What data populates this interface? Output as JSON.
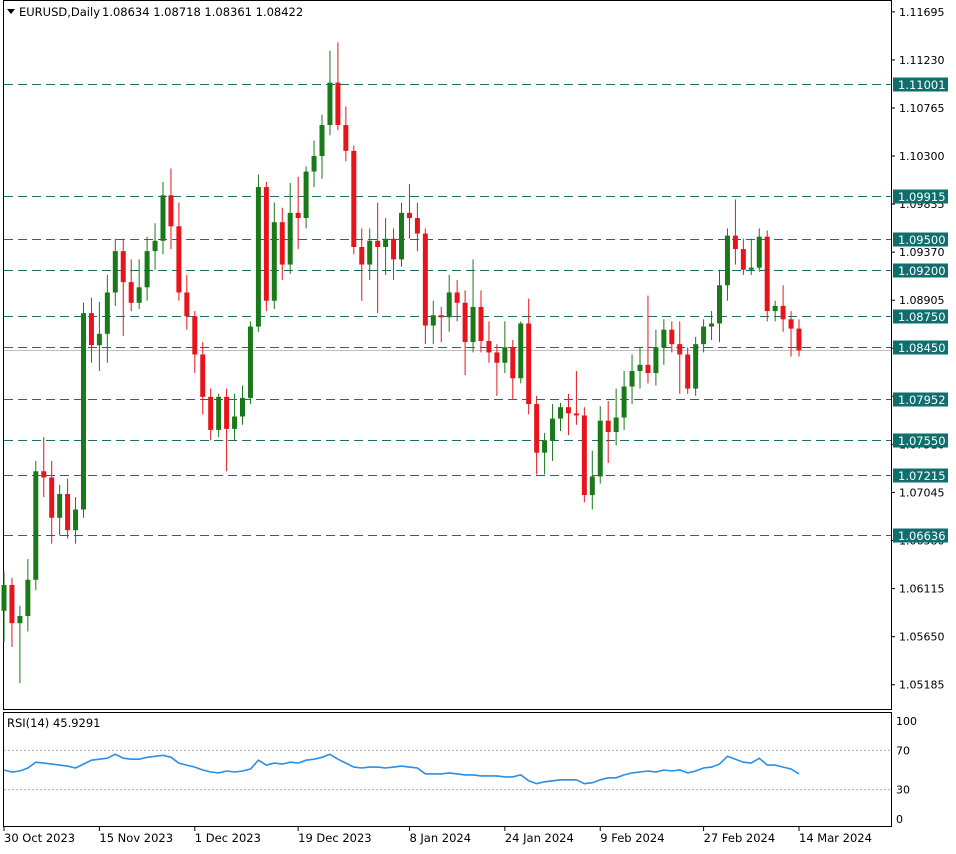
{
  "chart_data": {
    "type": "candlestick",
    "symbol": "EURUSD,Daily",
    "ohlc_text": "1.08634 1.08718 1.08361 1.08422",
    "price_ylim": [
      1.0495,
      1.118
    ],
    "price_ticks": [
      "1.11695",
      "1.11230",
      "1.10765",
      "1.10300",
      "1.09835",
      "1.09370",
      "1.08905",
      "1.08440",
      "1.07975",
      "1.07510",
      "1.07045",
      "1.06580",
      "1.06115",
      "1.05650",
      "1.05185"
    ],
    "levels": [
      {
        "value": 1.11001,
        "label": "1.11001"
      },
      {
        "value": 1.09915,
        "label": "1.09915"
      },
      {
        "value": 1.095,
        "label": "1.09500"
      },
      {
        "value": 1.092,
        "label": "1.09200"
      },
      {
        "value": 1.0875,
        "label": "1.08750"
      },
      {
        "value": 1.0845,
        "label": "1.08450"
      },
      {
        "value": 1.07952,
        "label": "1.07952"
      },
      {
        "value": 1.0755,
        "label": "1.07550"
      },
      {
        "value": 1.07215,
        "label": "1.07215"
      },
      {
        "value": 1.06636,
        "label": "1.06636"
      }
    ],
    "current_price": 1.08422,
    "x_labels": [
      "30 Oct 2023",
      "15 Nov 2023",
      "1 Dec 2023",
      "19 Dec 2023",
      "8 Jan 2024",
      "24 Jan 2024",
      "9 Feb 2024",
      "27 Feb 2024",
      "14 Mar 2024"
    ],
    "x_label_bar_index": [
      0,
      12,
      24,
      37,
      51,
      63,
      75,
      88,
      100
    ],
    "candles": [
      [
        1.059,
        1.0628,
        1.056,
        1.0615
      ],
      [
        1.0615,
        1.0622,
        1.0555,
        1.0578
      ],
      [
        1.0578,
        1.0595,
        1.052,
        1.0585
      ],
      [
        1.0585,
        1.064,
        1.057,
        1.062
      ],
      [
        1.062,
        1.0735,
        1.061,
        1.0725
      ],
      [
        1.0725,
        1.0758,
        1.07,
        1.0719
      ],
      [
        1.0719,
        1.0735,
        1.0655,
        1.068
      ],
      [
        1.068,
        1.0712,
        1.0663,
        1.0703
      ],
      [
        1.0703,
        1.0718,
        1.066,
        1.0668
      ],
      [
        1.0668,
        1.07,
        1.0655,
        1.0688
      ],
      [
        1.0688,
        1.0888,
        1.068,
        1.0878
      ],
      [
        1.0878,
        1.0893,
        1.083,
        1.0847
      ],
      [
        1.0847,
        1.0889,
        1.0822,
        1.0858
      ],
      [
        1.0858,
        1.0915,
        1.083,
        1.0898
      ],
      [
        1.0898,
        1.095,
        1.0885,
        1.0938
      ],
      [
        1.0938,
        1.095,
        1.0856,
        1.0908
      ],
      [
        1.0908,
        1.093,
        1.088,
        1.0888
      ],
      [
        1.0888,
        1.093,
        1.0882,
        1.0903
      ],
      [
        1.0903,
        1.0952,
        1.089,
        1.0938
      ],
      [
        1.0938,
        1.0965,
        1.092,
        1.0948
      ],
      [
        1.0948,
        1.1005,
        1.0935,
        1.0992
      ],
      [
        1.0992,
        1.1018,
        1.094,
        1.0962
      ],
      [
        1.0962,
        1.0985,
        1.089,
        1.0898
      ],
      [
        1.0898,
        1.0915,
        1.0862,
        1.0875
      ],
      [
        1.0875,
        1.088,
        1.082,
        1.0838
      ],
      [
        1.0838,
        1.085,
        1.078,
        1.0797
      ],
      [
        1.0797,
        1.0805,
        1.0755,
        1.0765
      ],
      [
        1.0765,
        1.08,
        1.0758,
        1.0797
      ],
      [
        1.0797,
        1.0805,
        1.0725,
        1.0766
      ],
      [
        1.0766,
        1.08,
        1.0755,
        1.0778
      ],
      [
        1.0778,
        1.0808,
        1.077,
        1.0796
      ],
      [
        1.0796,
        1.087,
        1.079,
        1.0865
      ],
      [
        1.0865,
        1.1012,
        1.086,
        1.1
      ],
      [
        1.1,
        1.1005,
        1.088,
        1.089
      ],
      [
        1.089,
        1.0985,
        1.0882,
        1.0966
      ],
      [
        1.0966,
        1.098,
        1.091,
        1.0925
      ],
      [
        1.0925,
        1.1004,
        1.0916,
        1.0975
      ],
      [
        1.0975,
        1.101,
        1.094,
        1.097
      ],
      [
        1.097,
        1.102,
        1.096,
        1.1015
      ],
      [
        1.1015,
        1.1045,
        1.1,
        1.103
      ],
      [
        1.103,
        1.107,
        1.1008,
        1.106
      ],
      [
        1.106,
        1.1132,
        1.105,
        1.1101
      ],
      [
        1.1101,
        1.114,
        1.1055,
        1.106
      ],
      [
        1.106,
        1.1078,
        1.1025,
        1.1035
      ],
      [
        1.1035,
        1.104,
        1.0935,
        1.0942
      ],
      [
        1.0942,
        1.096,
        1.089,
        1.0925
      ],
      [
        1.0925,
        1.096,
        1.091,
        1.0948
      ],
      [
        1.0948,
        1.0985,
        1.0878,
        1.0942
      ],
      [
        1.0942,
        1.097,
        1.0915,
        1.095
      ],
      [
        1.095,
        1.096,
        1.091,
        1.093
      ],
      [
        1.093,
        1.0985,
        1.0923,
        1.0975
      ],
      [
        1.0975,
        1.1003,
        1.095,
        1.097
      ],
      [
        1.097,
        1.0985,
        1.0938,
        1.0955
      ],
      [
        1.0955,
        1.096,
        1.0848,
        1.0866
      ],
      [
        1.0866,
        1.089,
        1.0848,
        1.0876
      ],
      [
        1.0876,
        1.0884,
        1.085,
        1.0874
      ],
      [
        1.0874,
        1.0915,
        1.086,
        1.0898
      ],
      [
        1.0898,
        1.091,
        1.087,
        1.0888
      ],
      [
        1.0888,
        1.09,
        1.0818,
        1.085
      ],
      [
        1.085,
        1.093,
        1.084,
        1.0884
      ],
      [
        1.0884,
        1.09,
        1.084,
        1.0851
      ],
      [
        1.0851,
        1.087,
        1.083,
        1.084
      ],
      [
        1.084,
        1.0848,
        1.0798,
        1.083
      ],
      [
        1.083,
        1.087,
        1.082,
        1.0845
      ],
      [
        1.0845,
        1.0852,
        1.0795,
        1.0815
      ],
      [
        1.0815,
        1.087,
        1.081,
        1.0868
      ],
      [
        1.0868,
        1.0892,
        1.078,
        1.079
      ],
      [
        1.079,
        1.0798,
        1.0722,
        1.0743
      ],
      [
        1.0743,
        1.0762,
        1.0722,
        1.0755
      ],
      [
        1.0755,
        1.079,
        1.0735,
        1.0776
      ],
      [
        1.0776,
        1.0791,
        1.0764,
        1.0787
      ],
      [
        1.0787,
        1.08,
        1.076,
        1.0781
      ],
      [
        1.0781,
        1.0822,
        1.077,
        1.0779
      ],
      [
        1.0779,
        1.0787,
        1.0695,
        1.0702
      ],
      [
        1.0702,
        1.0745,
        1.0688,
        1.072
      ],
      [
        1.072,
        1.0788,
        1.0713,
        1.0774
      ],
      [
        1.0774,
        1.0793,
        1.0733,
        1.0763
      ],
      [
        1.0763,
        1.0805,
        1.075,
        1.0777
      ],
      [
        1.0777,
        1.0822,
        1.0765,
        1.0807
      ],
      [
        1.0807,
        1.0838,
        1.079,
        1.0822
      ],
      [
        1.0822,
        1.0845,
        1.0805,
        1.0828
      ],
      [
        1.0828,
        1.0895,
        1.081,
        1.082
      ],
      [
        1.082,
        1.0862,
        1.0808,
        1.0845
      ],
      [
        1.0845,
        1.0872,
        1.0828,
        1.0862
      ],
      [
        1.0862,
        1.087,
        1.084,
        1.0848
      ],
      [
        1.0848,
        1.087,
        1.08,
        1.0838
      ],
      [
        1.0838,
        1.0845,
        1.08,
        1.0805
      ],
      [
        1.0805,
        1.0855,
        1.0798,
        1.0848
      ],
      [
        1.0848,
        1.0872,
        1.084,
        1.0865
      ],
      [
        1.0865,
        1.088,
        1.0852,
        1.0868
      ],
      [
        1.0868,
        1.092,
        1.085,
        1.0905
      ],
      [
        1.0905,
        1.096,
        1.089,
        1.0953
      ],
      [
        1.0953,
        1.0988,
        1.0925,
        1.094
      ],
      [
        1.094,
        1.095,
        1.0915,
        1.092
      ],
      [
        1.092,
        1.095,
        1.0915,
        1.0922
      ],
      [
        1.0922,
        1.096,
        1.0918,
        1.0952
      ],
      [
        1.0952,
        1.0958,
        1.087,
        1.088
      ],
      [
        1.088,
        1.089,
        1.087,
        1.0885
      ],
      [
        1.0885,
        1.0905,
        1.086,
        1.0872
      ],
      [
        1.0872,
        1.088,
        1.0836,
        1.0863
      ],
      [
        1.0863,
        1.0872,
        1.0836,
        1.0842
      ]
    ],
    "rsi": {
      "label": "RSI(14) 45.9291",
      "ticks": [
        "100",
        "70",
        "30",
        "0"
      ],
      "levels": [
        70,
        30
      ],
      "values": [
        50,
        48,
        49,
        52,
        58,
        57,
        56,
        55,
        54,
        52,
        56,
        60,
        61,
        62,
        66,
        62,
        61,
        61,
        63,
        64,
        65,
        63,
        57,
        55,
        53,
        50,
        48,
        47,
        49,
        48,
        49,
        51,
        60,
        55,
        57,
        56,
        58,
        57,
        60,
        61,
        63,
        66,
        61,
        57,
        53,
        52,
        53,
        53,
        52,
        53,
        54,
        53,
        52,
        46,
        46,
        46,
        47,
        46,
        45,
        45,
        44,
        44,
        44,
        43,
        43,
        45,
        39,
        36,
        38,
        39,
        40,
        40,
        40,
        36,
        37,
        40,
        42,
        42,
        45,
        47,
        48,
        49,
        48,
        50,
        49,
        50,
        47,
        49,
        52,
        53,
        56,
        64,
        61,
        58,
        57,
        62,
        55,
        55,
        53,
        51,
        46
      ]
    }
  }
}
